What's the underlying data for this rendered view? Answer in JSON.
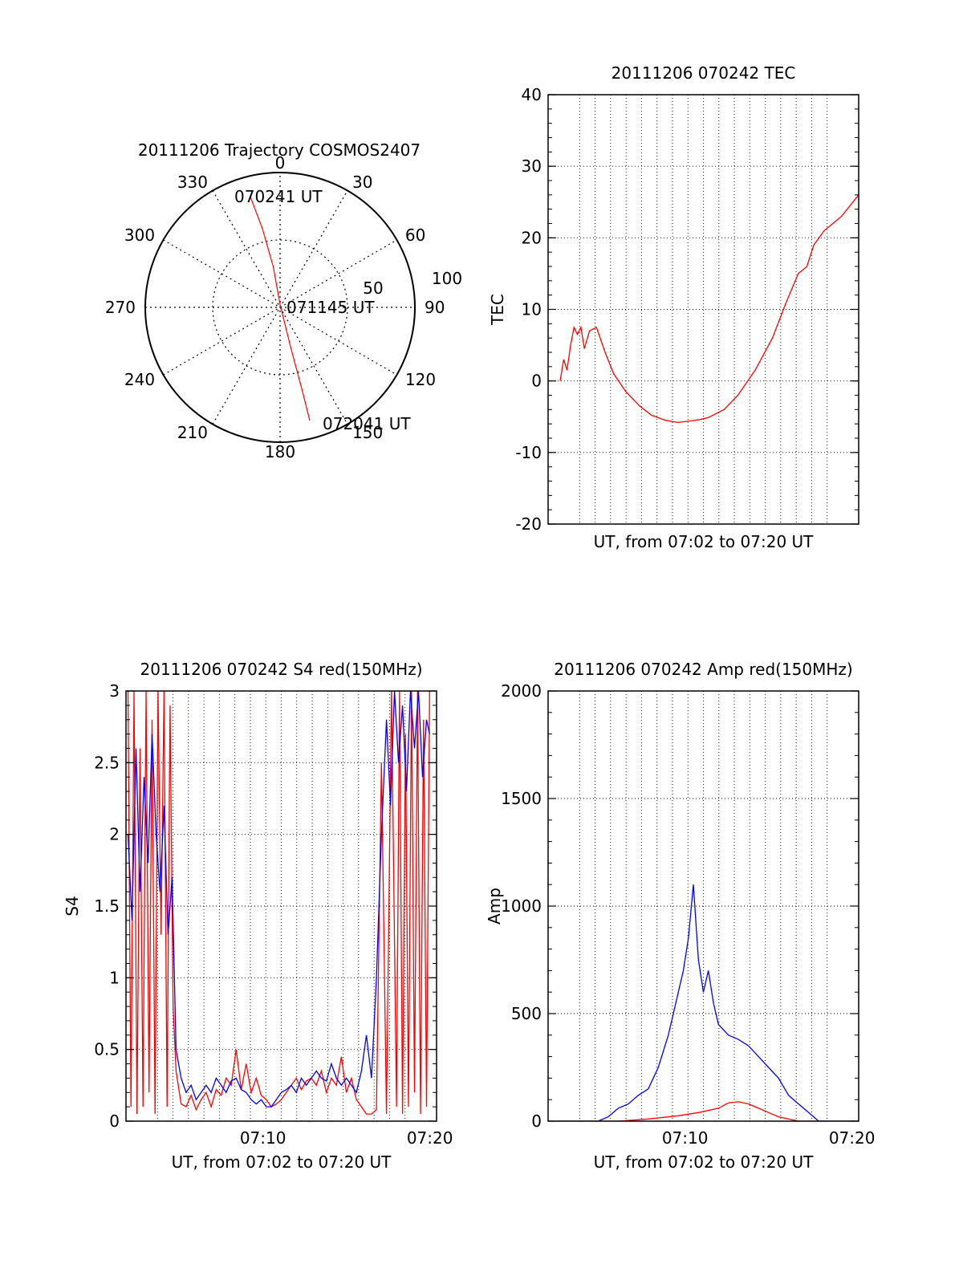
{
  "colors": {
    "red": "#ff0000",
    "blue": "#0000ff",
    "axis": "#000000",
    "grid": "#000000"
  },
  "chart_data": [
    {
      "type": "polar",
      "title": "20111206 Trajectory COSMOS2407",
      "azimuth_labels": [
        {
          "az": 0,
          "label": "0"
        },
        {
          "az": 30,
          "label": "30"
        },
        {
          "az": 60,
          "label": "60"
        },
        {
          "az": 90,
          "label": "90"
        },
        {
          "az": 120,
          "label": "120"
        },
        {
          "az": 150,
          "label": "150"
        },
        {
          "az": 180,
          "label": "180"
        },
        {
          "az": 210,
          "label": "210"
        },
        {
          "az": 240,
          "label": "240"
        },
        {
          "az": 270,
          "label": "270"
        },
        {
          "az": 300,
          "label": "300"
        },
        {
          "az": 330,
          "label": "330"
        }
      ],
      "radial_labels": [
        "50",
        "100"
      ],
      "track": [
        [
          -22,
          82
        ],
        [
          -13,
          58
        ],
        [
          -5,
          30
        ],
        [
          0,
          2
        ],
        [
          8,
          -30
        ],
        [
          16,
          -60
        ],
        [
          22,
          -84
        ]
      ],
      "annotations": [
        "070241 UT",
        "071145 UT",
        "072041 UT"
      ]
    },
    {
      "type": "line",
      "title": "20111206 070242 TEC",
      "xlabel": "UT, from 07:02 to 07:20 UT",
      "ylabel": "TEC",
      "xlim": [
        0,
        18
      ],
      "ylim": [
        -20,
        40
      ],
      "yticks": [
        -20,
        -10,
        0,
        10,
        20,
        30,
        40
      ],
      "yticklabels": [
        "-20",
        "-10",
        "0",
        "10",
        "20",
        "30",
        "40"
      ],
      "series": [
        {
          "color": "red",
          "x": [
            0.7,
            0.9,
            1.1,
            1.3,
            1.5,
            1.7,
            1.9,
            2.1,
            2.4,
            2.8,
            3.3,
            3.8,
            4.5,
            5.3,
            6.0,
            6.8,
            7.5,
            8.2,
            8.8,
            9.3,
            10.2,
            11.0,
            12.0,
            13.0,
            13.8,
            14.5,
            15.0,
            15.4,
            16.0,
            16.5,
            17.0,
            17.5,
            18.0
          ],
          "y": [
            0,
            3,
            1.5,
            5,
            7.5,
            6.5,
            7.5,
            4.5,
            7,
            7.5,
            4,
            1,
            -1.5,
            -3.5,
            -4.8,
            -5.5,
            -5.8,
            -5.6,
            -5.4,
            -5.1,
            -4,
            -2,
            1.5,
            6,
            11,
            15,
            16,
            19,
            21,
            22,
            23,
            24.5,
            26
          ]
        }
      ]
    },
    {
      "type": "line",
      "title": "20111206 070242 S4 red(150MHz)",
      "xlabel": "UT, from 07:02 to 07:20 UT",
      "ylabel": "S4",
      "xlim": [
        7.03,
        7.34
      ],
      "ylim": [
        0,
        3
      ],
      "xticks": [
        7.1667,
        7.3333
      ],
      "xticklabels": [
        "07:10",
        "07:20"
      ],
      "yticks": [
        0,
        0.5,
        1,
        1.5,
        2,
        2.5,
        3
      ],
      "yticklabels": [
        "0",
        "0.5",
        "1",
        "1.5",
        "2",
        "2.5",
        "3"
      ],
      "series": [
        {
          "color": "red",
          "x": [
            7.032,
            7.035,
            7.038,
            7.041,
            7.044,
            7.047,
            7.05,
            7.053,
            7.056,
            7.059,
            7.062,
            7.065,
            7.068,
            7.071,
            7.074,
            7.077,
            7.08,
            7.085,
            7.09,
            7.095,
            7.1,
            7.105,
            7.11,
            7.115,
            7.12,
            7.125,
            7.13,
            7.135,
            7.14,
            7.145,
            7.15,
            7.155,
            7.16,
            7.165,
            7.17,
            7.175,
            7.18,
            7.185,
            7.19,
            7.195,
            7.2,
            7.205,
            7.21,
            7.215,
            7.22,
            7.225,
            7.23,
            7.235,
            7.24,
            7.245,
            7.25,
            7.255,
            7.26,
            7.265,
            7.27,
            7.275,
            7.28,
            7.285,
            7.29,
            7.295,
            7.3,
            7.303,
            7.306,
            7.309,
            7.312,
            7.315,
            7.318,
            7.321,
            7.324,
            7.327,
            7.33,
            7.333
          ],
          "y": [
            3,
            0.1,
            3,
            0.05,
            2.6,
            0.1,
            3,
            0.2,
            2.8,
            0.05,
            3,
            1.3,
            3,
            0.1,
            2.9,
            0.8,
            0.35,
            0.12,
            0.1,
            0.18,
            0.08,
            0.15,
            0.2,
            0.1,
            0.22,
            0.18,
            0.3,
            0.25,
            0.5,
            0.22,
            0.4,
            0.2,
            0.3,
            0.18,
            0.15,
            0.1,
            0.12,
            0.15,
            0.2,
            0.25,
            0.3,
            0.22,
            0.28,
            0.3,
            0.25,
            0.35,
            0.2,
            0.3,
            0.25,
            0.45,
            0.2,
            0.3,
            0.15,
            0.1,
            0.05,
            0.05,
            0.08,
            2.5,
            0.05,
            3,
            0.1,
            3,
            0.05,
            2.7,
            0.1,
            3,
            0.2,
            3,
            0.05,
            2.8,
            0.1,
            3
          ]
        },
        {
          "color": "blue",
          "x": [
            7.032,
            7.036,
            7.04,
            7.044,
            7.048,
            7.052,
            7.056,
            7.06,
            7.064,
            7.068,
            7.072,
            7.076,
            7.08,
            7.085,
            7.09,
            7.095,
            7.1,
            7.105,
            7.11,
            7.115,
            7.12,
            7.125,
            7.13,
            7.135,
            7.14,
            7.145,
            7.15,
            7.155,
            7.16,
            7.165,
            7.17,
            7.175,
            7.18,
            7.185,
            7.19,
            7.195,
            7.2,
            7.205,
            7.21,
            7.215,
            7.22,
            7.225,
            7.23,
            7.235,
            7.24,
            7.245,
            7.25,
            7.255,
            7.26,
            7.265,
            7.27,
            7.275,
            7.28,
            7.285,
            7.29,
            7.294,
            7.298,
            7.302,
            7.306,
            7.31,
            7.314,
            7.318,
            7.322,
            7.326,
            7.33,
            7.333
          ],
          "y": [
            2.0,
            1.4,
            2.6,
            1.6,
            2.4,
            1.8,
            2.7,
            2.0,
            1.6,
            2.2,
            1.3,
            1.7,
            0.5,
            0.3,
            0.2,
            0.25,
            0.15,
            0.2,
            0.25,
            0.2,
            0.3,
            0.25,
            0.2,
            0.28,
            0.3,
            0.22,
            0.2,
            0.15,
            0.12,
            0.15,
            0.1,
            0.1,
            0.15,
            0.2,
            0.22,
            0.25,
            0.2,
            0.3,
            0.25,
            0.3,
            0.35,
            0.3,
            0.28,
            0.4,
            0.3,
            0.25,
            0.3,
            0.25,
            0.2,
            0.35,
            0.6,
            0.3,
            1.0,
            2.0,
            2.8,
            2.2,
            3.0,
            2.5,
            2.9,
            2.3,
            3.0,
            2.6,
            3.0,
            2.4,
            2.8,
            2.7
          ]
        }
      ]
    },
    {
      "type": "line",
      "title": "20111206 070242 Amp red(150MHz)",
      "xlabel": "UT, from 07:02 to 07:20 UT",
      "ylabel": "Amp",
      "xlim": [
        7.03,
        7.34
      ],
      "ylim": [
        0,
        2000
      ],
      "xticks": [
        7.1667,
        7.3333
      ],
      "xticklabels": [
        "07:10",
        "07:20"
      ],
      "yticks": [
        0,
        500,
        1000,
        1500,
        2000
      ],
      "yticklabels": [
        "0",
        "500",
        "1000",
        "1500",
        "2000"
      ],
      "series": [
        {
          "color": "blue",
          "x": [
            7.04,
            7.08,
            7.09,
            7.1,
            7.11,
            7.12,
            7.13,
            7.14,
            7.15,
            7.16,
            7.165,
            7.17,
            7.175,
            7.18,
            7.185,
            7.19,
            7.195,
            7.2,
            7.21,
            7.22,
            7.23,
            7.24,
            7.25,
            7.26,
            7.27,
            7.28,
            7.29,
            7.3,
            7.34
          ],
          "y": [
            0,
            0,
            20,
            60,
            80,
            120,
            150,
            250,
            400,
            600,
            700,
            850,
            1100,
            750,
            600,
            700,
            550,
            450,
            400,
            380,
            350,
            300,
            250,
            200,
            120,
            80,
            40,
            0,
            0
          ]
        },
        {
          "color": "red",
          "x": [
            7.04,
            7.1,
            7.13,
            7.16,
            7.18,
            7.2,
            7.21,
            7.22,
            7.23,
            7.24,
            7.25,
            7.26,
            7.28,
            7.34
          ],
          "y": [
            0,
            0,
            10,
            25,
            40,
            60,
            85,
            90,
            80,
            60,
            40,
            20,
            0,
            0
          ]
        }
      ]
    }
  ]
}
